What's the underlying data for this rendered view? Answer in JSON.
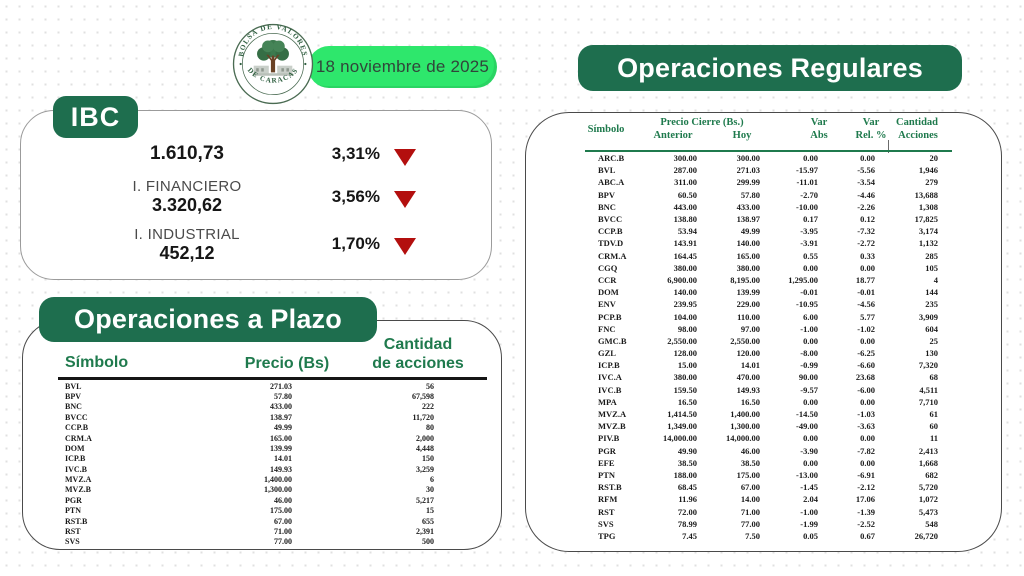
{
  "brand": {
    "logo_top_text": "BOLSA DE VALORES",
    "logo_bottom_text": "DE CARACAS",
    "date": "18 noviembre de 2025"
  },
  "colors": {
    "dark_green": "#1e6e4e",
    "table_header_green": "#1f7a4d",
    "bright_green": "#2ee76c",
    "red_arrow": "#b30f0e"
  },
  "ibc": {
    "title": "IBC",
    "rows": [
      {
        "label": "",
        "value": "1.610,73",
        "pct": "3,31%",
        "direction": "down"
      },
      {
        "label": "I. FINANCIERO",
        "value": "3.320,62",
        "pct": "3,56%",
        "direction": "down"
      },
      {
        "label": "I. INDUSTRIAL",
        "value": "452,12",
        "pct": "1,70%",
        "direction": "down"
      }
    ]
  },
  "plazo": {
    "title": "Operaciones a Plazo",
    "headers": {
      "symbol": "Símbolo",
      "price": "Precio (Bs)",
      "qty_line1": "Cantidad",
      "qty_line2": "de acciones"
    },
    "rows": [
      [
        "BVL",
        "271.03",
        "56"
      ],
      [
        "BPV",
        "57.80",
        "67,598"
      ],
      [
        "BNC",
        "433.00",
        "222"
      ],
      [
        "BVCC",
        "138.97",
        "11,720"
      ],
      [
        "CCP.B",
        "49.99",
        "80"
      ],
      [
        "CRM.A",
        "165.00",
        "2,000"
      ],
      [
        "DOM",
        "139.99",
        "4,448"
      ],
      [
        "ICP.B",
        "14.01",
        "150"
      ],
      [
        "IVC.B",
        "149.93",
        "3,259"
      ],
      [
        "MVZ.A",
        "1,400.00",
        "6"
      ],
      [
        "MVZ.B",
        "1,300.00",
        "30"
      ],
      [
        "PGR",
        "46.00",
        "5,217"
      ],
      [
        "PTN",
        "175.00",
        "15"
      ],
      [
        "RST.B",
        "67.00",
        "655"
      ],
      [
        "RST",
        "71.00",
        "2,391"
      ],
      [
        "SVS",
        "77.00",
        "500"
      ]
    ]
  },
  "regulares": {
    "title": "Operaciones Regulares",
    "headers": {
      "symbol": "Símbolo",
      "price_group": "Precio Cierre (Bs.)",
      "anterior": "Anterior",
      "hoy": "Hoy",
      "var_abs_top": "Var",
      "var_abs_bottom": "Abs",
      "var_rel_top": "Var",
      "var_rel_bottom": "Rel. %",
      "qty_top": "Cantidad",
      "qty_bottom": "Acciones"
    },
    "rows": [
      [
        "ARC.B",
        "300.00",
        "300.00",
        "0.00",
        "0.00",
        "20"
      ],
      [
        "BVL",
        "287.00",
        "271.03",
        "-15.97",
        "-5.56",
        "1,946"
      ],
      [
        "ABC.A",
        "311.00",
        "299.99",
        "-11.01",
        "-3.54",
        "279"
      ],
      [
        "BPV",
        "60.50",
        "57.80",
        "-2.70",
        "-4.46",
        "13,688"
      ],
      [
        "BNC",
        "443.00",
        "433.00",
        "-10.00",
        "-2.26",
        "1,308"
      ],
      [
        "BVCC",
        "138.80",
        "138.97",
        "0.17",
        "0.12",
        "17,825"
      ],
      [
        "CCP.B",
        "53.94",
        "49.99",
        "-3.95",
        "-7.32",
        "3,174"
      ],
      [
        "TDV.D",
        "143.91",
        "140.00",
        "-3.91",
        "-2.72",
        "1,132"
      ],
      [
        "CRM.A",
        "164.45",
        "165.00",
        "0.55",
        "0.33",
        "285"
      ],
      [
        "CGQ",
        "380.00",
        "380.00",
        "0.00",
        "0.00",
        "105"
      ],
      [
        "CCR",
        "6,900.00",
        "8,195.00",
        "1,295.00",
        "18.77",
        "4"
      ],
      [
        "DOM",
        "140.00",
        "139.99",
        "-0.01",
        "-0.01",
        "144"
      ],
      [
        "ENV",
        "239.95",
        "229.00",
        "-10.95",
        "-4.56",
        "235"
      ],
      [
        "PCP.B",
        "104.00",
        "110.00",
        "6.00",
        "5.77",
        "3,909"
      ],
      [
        "FNC",
        "98.00",
        "97.00",
        "-1.00",
        "-1.02",
        "604"
      ],
      [
        "GMC.B",
        "2,550.00",
        "2,550.00",
        "0.00",
        "0.00",
        "25"
      ],
      [
        "GZL",
        "128.00",
        "120.00",
        "-8.00",
        "-6.25",
        "130"
      ],
      [
        "ICP.B",
        "15.00",
        "14.01",
        "-0.99",
        "-6.60",
        "7,320"
      ],
      [
        "IVC.A",
        "380.00",
        "470.00",
        "90.00",
        "23.68",
        "68"
      ],
      [
        "IVC.B",
        "159.50",
        "149.93",
        "-9.57",
        "-6.00",
        "4,511"
      ],
      [
        "MPA",
        "16.50",
        "16.50",
        "0.00",
        "0.00",
        "7,710"
      ],
      [
        "MVZ.A",
        "1,414.50",
        "1,400.00",
        "-14.50",
        "-1.03",
        "61"
      ],
      [
        "MVZ.B",
        "1,349.00",
        "1,300.00",
        "-49.00",
        "-3.63",
        "60"
      ],
      [
        "PIV.B",
        "14,000.00",
        "14,000.00",
        "0.00",
        "0.00",
        "11"
      ],
      [
        "PGR",
        "49.90",
        "46.00",
        "-3.90",
        "-7.82",
        "2,413"
      ],
      [
        "EFE",
        "38.50",
        "38.50",
        "0.00",
        "0.00",
        "1,668"
      ],
      [
        "PTN",
        "188.00",
        "175.00",
        "-13.00",
        "-6.91",
        "682"
      ],
      [
        "RST.B",
        "68.45",
        "67.00",
        "-1.45",
        "-2.12",
        "5,720"
      ],
      [
        "RFM",
        "11.96",
        "14.00",
        "2.04",
        "17.06",
        "1,072"
      ],
      [
        "RST",
        "72.00",
        "71.00",
        "-1.00",
        "-1.39",
        "5,473"
      ],
      [
        "SVS",
        "78.99",
        "77.00",
        "-1.99",
        "-2.52",
        "548"
      ],
      [
        "TPG",
        "7.45",
        "7.50",
        "0.05",
        "0.67",
        "26,720"
      ]
    ]
  }
}
